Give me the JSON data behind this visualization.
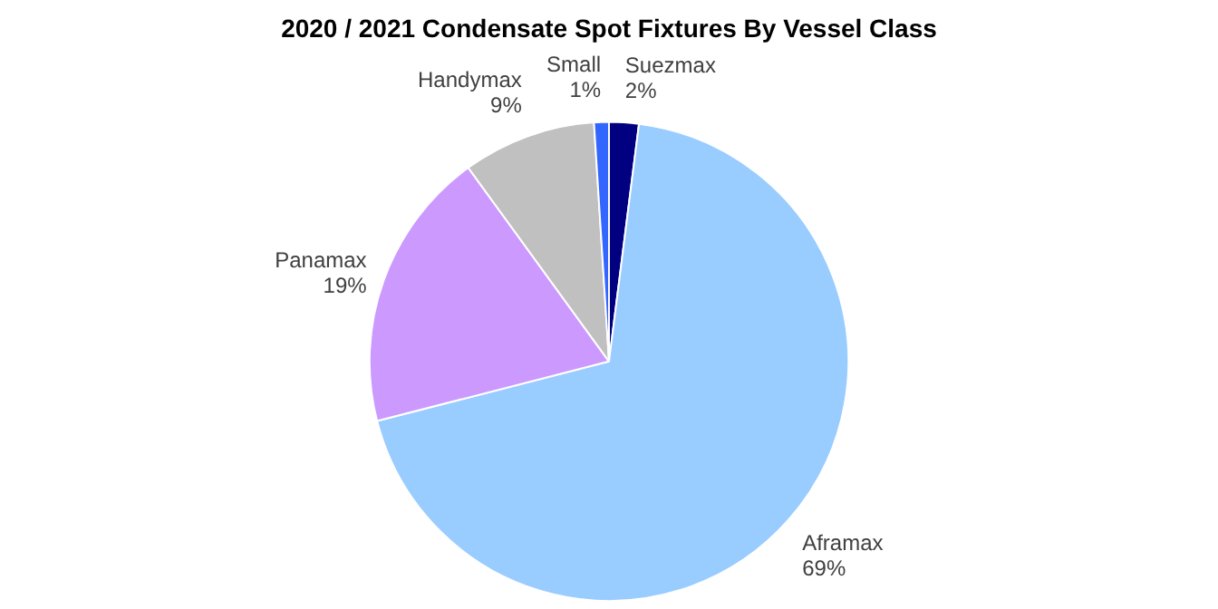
{
  "chart_data": {
    "type": "pie",
    "title": "2020 / 2021 Condensate Spot Fixtures By Vessel Class",
    "categories": [
      "Suezmax",
      "Aframax",
      "Panamax",
      "Handymax",
      "Small"
    ],
    "values": [
      2,
      69,
      19,
      9,
      1
    ],
    "value_labels": [
      "2%",
      "69%",
      "19%",
      "9%",
      "1%"
    ],
    "colors": [
      "#000080",
      "#99ccff",
      "#cc99ff",
      "#c0c0c0",
      "#3366ff"
    ],
    "legend": false
  }
}
